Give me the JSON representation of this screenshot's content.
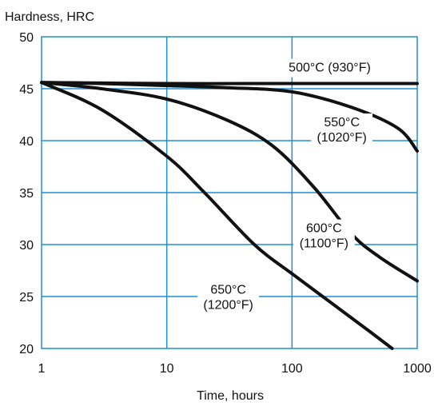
{
  "chart_data": {
    "type": "line",
    "title": "",
    "xlabel": "Time, hours",
    "ylabel": "Hardness, HRC",
    "x_scale": "log",
    "xlim": [
      1,
      1000
    ],
    "ylim": [
      20,
      50
    ],
    "grid": true,
    "x_ticks": [
      "1",
      "10",
      "100",
      "1000"
    ],
    "y_ticks": [
      "50",
      "45",
      "40",
      "35",
      "30",
      "25",
      "20"
    ],
    "colors": {
      "grid": "#1f8fd6",
      "line": "#111111",
      "axis": "#111111"
    },
    "series": [
      {
        "x": [
          1,
          10,
          100,
          1000
        ],
        "y": [
          45.6,
          45.5,
          45.5,
          45.5
        ]
      },
      {
        "x": [
          1,
          3,
          10,
          30,
          100,
          300,
          700,
          1000
        ],
        "y": [
          45.6,
          45.5,
          45.3,
          45.1,
          44.7,
          43.2,
          41.2,
          39.0
        ]
      },
      {
        "x": [
          1,
          3,
          10,
          30,
          70,
          150,
          300,
          500,
          1000
        ],
        "y": [
          45.6,
          45.0,
          44.0,
          42.0,
          39.5,
          35.5,
          31.0,
          28.8,
          26.5
        ]
      },
      {
        "x": [
          1,
          3,
          10,
          20,
          50,
          100,
          200,
          400,
          630
        ],
        "y": [
          45.6,
          43.0,
          38.5,
          35.0,
          30.0,
          27.2,
          24.5,
          21.8,
          20.0
        ]
      }
    ],
    "annotations": [
      {
        "lines": [
          "500°C (930°F)"
        ],
        "x": 200,
        "y": 47.0
      },
      {
        "lines": [
          "550°C",
          "(1020°F)"
        ],
        "x": 250,
        "y": 41.0
      },
      {
        "lines": [
          "600°C",
          "(1100°F)"
        ],
        "x": 180,
        "y": 30.8
      },
      {
        "lines": [
          "650°C",
          "(1200°F)"
        ],
        "x": 31,
        "y": 24.9
      }
    ]
  }
}
